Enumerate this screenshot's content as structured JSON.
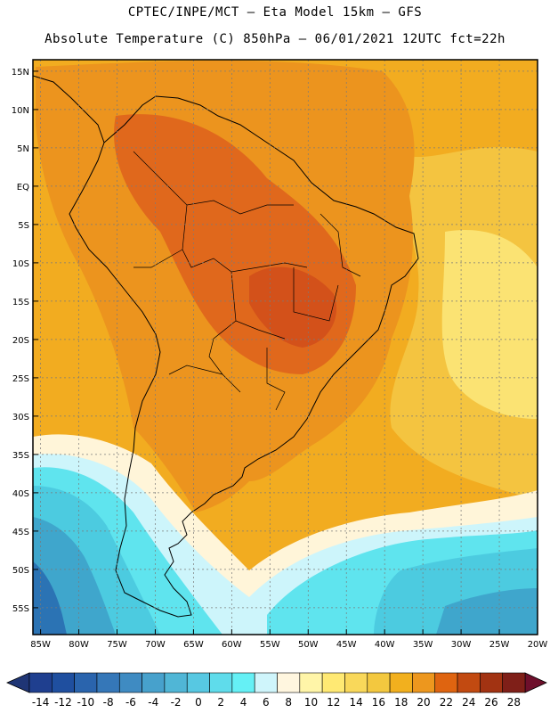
{
  "title_line1": "CPTEC/INPE/MCT –  Eta Model 15km – GFS",
  "title_line2": "Absolute Temperature (C) 850hPa – 06/01/2021 12UTC fct=22h",
  "lat_labels": [
    "15N",
    "10N",
    "5N",
    "EQ",
    "5S",
    "10S",
    "15S",
    "20S",
    "25S",
    "30S",
    "35S",
    "40S",
    "45S",
    "50S",
    "55S"
  ],
  "lon_labels": [
    "85W",
    "80W",
    "75W",
    "70W",
    "65W",
    "60W",
    "55W",
    "50W",
    "45W",
    "40W",
    "35W",
    "30W",
    "25W",
    "20W"
  ],
  "colorbar": {
    "labels": [
      "-14",
      "-12",
      "-10",
      "-8",
      "-6",
      "-4",
      "-2",
      "0",
      "2",
      "4",
      "6",
      "8",
      "10",
      "12",
      "14",
      "16",
      "18",
      "20",
      "22",
      "24",
      "26",
      "28"
    ],
    "colors": [
      "#1f3f8f",
      "#1f4f9f",
      "#2a64ad",
      "#3577b8",
      "#3f8bc2",
      "#47a1cc",
      "#50b6d6",
      "#57c8e2",
      "#5fdceb",
      "#65f0f5",
      "#cff5fb",
      "#fff6df",
      "#fff5a8",
      "#ffe973",
      "#f9d85a",
      "#f3c83f",
      "#f2b01e",
      "#ed971e",
      "#df6410",
      "#c24a11",
      "#a23312",
      "#7f1f18"
    ],
    "under_color": "#1f3575",
    "over_color": "#6e0f2b"
  },
  "field_colors": {
    "ocean_north": "#f2ac20",
    "land_warm": "#ec941e",
    "land_hot": "#e0681c",
    "land_hottest": "#d3511a",
    "atlantic_mid": "#f4c440",
    "atlantic_light": "#fbe373",
    "cool_band": "#fff5d9",
    "cyan_light": "#cdf5fb",
    "cyan": "#5fe4ee",
    "cyan_dark": "#4ccbe0",
    "blue_mid": "#3fa6cc",
    "blue_dark": "#2b73b4"
  }
}
